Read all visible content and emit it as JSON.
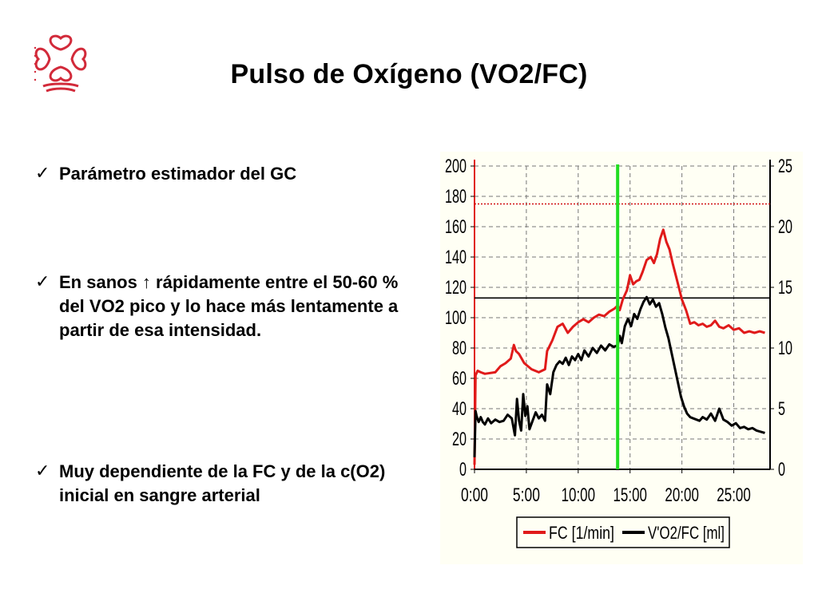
{
  "slide": {
    "title": "Pulso de Oxígeno (VO2/FC)",
    "logo_icon": "caritas-heart-cross-logo",
    "logo_color": "#d22a3a",
    "bullet_icon": "checkmark-icon",
    "bullets": [
      "Parámetro estimador del GC",
      "En sanos ↑ rápidamente entre el 50-60 % del VO2 pico y lo hace más lentamente a partir de esa intensidad.",
      "Muy dependiente de la  FC y de la  c(O2) inicial en sangre arterial"
    ]
  },
  "chart_data": {
    "type": "line",
    "background": "#fffff4",
    "x_unit": "minutes",
    "x_ticks": [
      0,
      5,
      10,
      15,
      20,
      25
    ],
    "x_tick_labels": [
      "0:00",
      "5:00",
      "10:00",
      "15:00",
      "20:00",
      "25:00"
    ],
    "xlim": [
      0,
      28.5
    ],
    "ylim_left": [
      0,
      200
    ],
    "y_ticks_left": [
      0,
      20,
      40,
      60,
      80,
      100,
      120,
      140,
      160,
      180,
      200
    ],
    "ylim_right": [
      0,
      25
    ],
    "y_ticks_right": [
      0,
      5,
      10,
      15,
      20,
      25
    ],
    "grid": true,
    "legend_position": "bottom",
    "reference_lines": [
      {
        "axis": "left",
        "value": 175,
        "color": "#d01010",
        "style": "dotted"
      },
      {
        "axis": "left",
        "value": 113,
        "color": "#000000",
        "style": "solid"
      }
    ],
    "marker_line": {
      "x": 13.8,
      "color": "#22dd22"
    },
    "series": [
      {
        "name": "FC [1/min]",
        "axis": "left",
        "color": "#e01a1a",
        "x": [
          0,
          0.1,
          0.3,
          0.6,
          1,
          2,
          2.5,
          3,
          3.5,
          3.8,
          4,
          4.3,
          4.8,
          5.5,
          6.2,
          6.8,
          7,
          7.5,
          8,
          8.5,
          9,
          9.5,
          10,
          10.5,
          11,
          11.5,
          12,
          12.5,
          13,
          13.5,
          13.8,
          14,
          14.3,
          14.7,
          15,
          15.3,
          15.6,
          15.9,
          16.2,
          16.6,
          17,
          17.3,
          17.6,
          17.9,
          18.2,
          18.5,
          18.8,
          19.1,
          19.4,
          19.7,
          20,
          20.4,
          20.8,
          21.2,
          21.6,
          22,
          22.4,
          22.8,
          23.2,
          23.6,
          24,
          24.5,
          25,
          25.5,
          26,
          26.5,
          27,
          27.5,
          28
        ],
        "y": [
          3,
          62,
          65,
          64,
          63,
          64,
          68,
          70,
          73,
          82,
          78,
          76,
          70,
          66,
          64,
          66,
          78,
          85,
          94,
          96,
          90,
          94,
          97,
          99,
          97,
          100,
          102,
          101,
          104,
          106,
          108,
          105,
          112,
          118,
          128,
          122,
          124,
          125,
          130,
          138,
          140,
          136,
          142,
          152,
          158,
          150,
          145,
          136,
          128,
          120,
          112,
          105,
          96,
          97,
          95,
          96,
          94,
          95,
          98,
          94,
          93,
          95,
          92,
          93,
          90,
          91,
          90,
          91,
          90
        ]
      },
      {
        "name": "V'O2/FC [ml]",
        "axis": "right",
        "color": "#000000",
        "x": [
          0,
          0.1,
          0.2,
          0.4,
          0.6,
          0.8,
          1,
          1.3,
          1.6,
          2,
          2.4,
          2.8,
          3.2,
          3.6,
          3.9,
          4.1,
          4.3,
          4.5,
          4.7,
          4.9,
          5.1,
          5.3,
          5.6,
          5.9,
          6.2,
          6.5,
          6.8,
          7,
          7.3,
          7.6,
          7.9,
          8.2,
          8.5,
          8.8,
          9.1,
          9.4,
          9.7,
          10,
          10.3,
          10.6,
          11,
          11.4,
          11.8,
          12.2,
          12.6,
          13,
          13.4,
          13.8,
          14,
          14.2,
          14.5,
          14.8,
          15.1,
          15.4,
          15.7,
          16,
          16.3,
          16.6,
          16.9,
          17.2,
          17.5,
          17.8,
          18.1,
          18.4,
          18.7,
          19,
          19.3,
          19.6,
          19.9,
          20.2,
          20.5,
          20.8,
          21.1,
          21.4,
          21.7,
          22,
          22.4,
          22.8,
          23.2,
          23.6,
          24,
          24.4,
          24.8,
          25.2,
          25.6,
          26,
          26.4,
          26.8,
          27.2,
          27.6,
          28
        ],
        "y": [
          1,
          4.8,
          4.4,
          3.9,
          4.3,
          3.9,
          3.7,
          4.2,
          3.8,
          4.1,
          3.9,
          4.0,
          4.5,
          4.2,
          2.8,
          5.8,
          4.0,
          3.2,
          6.2,
          4.4,
          5.2,
          3.3,
          4.0,
          4.7,
          4.2,
          4.5,
          4.0,
          7.0,
          6.2,
          8.0,
          8.6,
          8.9,
          8.7,
          9.2,
          8.6,
          9.3,
          9.0,
          9.5,
          9.0,
          9.8,
          9.3,
          10.0,
          9.6,
          10.2,
          9.8,
          10.3,
          10.1,
          10.2,
          11.0,
          10.4,
          11.8,
          12.4,
          11.8,
          12.8,
          12.4,
          13.2,
          13.8,
          14.2,
          13.6,
          14.0,
          13.4,
          13.7,
          12.8,
          11.7,
          10.8,
          9.6,
          8.4,
          7.2,
          6.0,
          5.2,
          4.6,
          4.3,
          4.2,
          4.1,
          4.0,
          4.3,
          4.1,
          4.6,
          4.0,
          5.0,
          4.1,
          3.9,
          3.6,
          3.8,
          3.4,
          3.5,
          3.3,
          3.4,
          3.2,
          3.1,
          3.0
        ]
      }
    ]
  }
}
